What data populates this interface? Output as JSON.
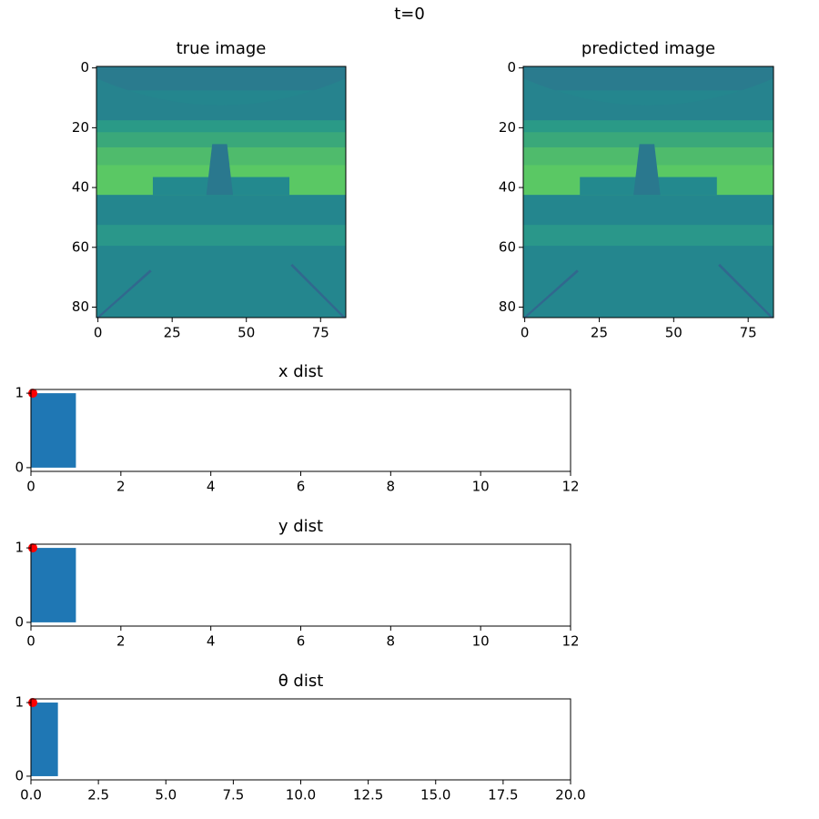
{
  "title": "t=0",
  "chart_data": [
    {
      "type": "image",
      "title": "true image",
      "xlim": [
        -0.5,
        83.5
      ],
      "ylim": [
        83.5,
        -0.5
      ],
      "xticks": [
        0,
        25,
        50,
        75
      ],
      "yticks": [
        0,
        20,
        40,
        60,
        80
      ]
    },
    {
      "type": "image",
      "title": "predicted image",
      "xlim": [
        -0.5,
        83.5
      ],
      "ylim": [
        83.5,
        -0.5
      ],
      "xticks": [
        0,
        25,
        50,
        75
      ],
      "yticks": [
        0,
        20,
        40,
        60,
        80
      ]
    },
    {
      "type": "histogram",
      "title": "x dist",
      "bins": [
        0,
        1
      ],
      "values": [
        1
      ],
      "color": "#1f77b4",
      "xlim": [
        0,
        12
      ],
      "ylim": [
        -0.05,
        1.05
      ],
      "xticks": [
        0,
        2,
        4,
        6,
        8,
        10,
        12
      ],
      "yticks": [
        0,
        1
      ],
      "marker": {
        "x": 0,
        "y": 1,
        "color": "red"
      }
    },
    {
      "type": "histogram",
      "title": "y dist",
      "bins": [
        0,
        1
      ],
      "values": [
        1
      ],
      "color": "#1f77b4",
      "xlim": [
        0,
        12
      ],
      "ylim": [
        -0.05,
        1.05
      ],
      "xticks": [
        0,
        2,
        4,
        6,
        8,
        10,
        12
      ],
      "yticks": [
        0,
        1
      ],
      "marker": {
        "x": 0,
        "y": 1,
        "color": "red"
      }
    },
    {
      "type": "histogram",
      "title": "θ dist",
      "bins": [
        0,
        1
      ],
      "values": [
        1
      ],
      "color": "#1f77b4",
      "xlim": [
        0,
        20
      ],
      "ylim": [
        -0.05,
        1.05
      ],
      "xticks": [
        {
          "value": 0,
          "label": "0.0"
        },
        2.5,
        {
          "value": 5,
          "label": "5.0"
        },
        7.5,
        {
          "value": 10,
          "label": "10.0"
        },
        12.5,
        {
          "value": 15,
          "label": "15.0"
        },
        17.5,
        {
          "value": 20,
          "label": "20.0"
        }
      ],
      "yticks": [
        0,
        1
      ],
      "marker": {
        "x": 0,
        "y": 1,
        "color": "red"
      }
    }
  ]
}
